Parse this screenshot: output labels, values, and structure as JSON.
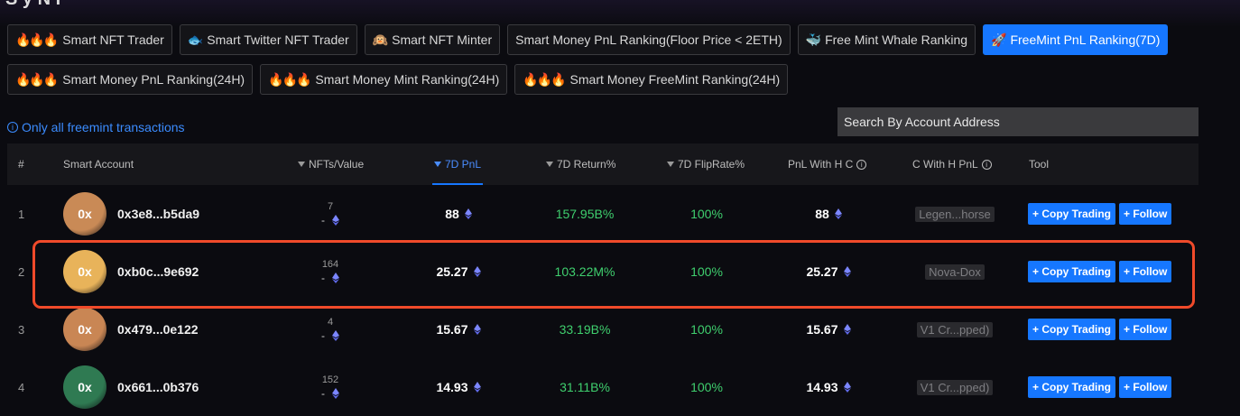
{
  "page": {
    "info_text": "Only all freemint transactions",
    "search_placeholder": "Search By Account Address",
    "top_fragment": "S        y N F"
  },
  "tabs_row1": [
    {
      "icon": "🔥🔥🔥",
      "label": "Smart NFT Trader",
      "active": false
    },
    {
      "icon": "🐟",
      "label": "Smart Twitter NFT Trader",
      "active": false
    },
    {
      "icon": "🙉",
      "label": "Smart NFT Minter",
      "active": false
    },
    {
      "icon": "",
      "label": "Smart Money PnL Ranking(Floor Price < 2ETH)",
      "active": false
    },
    {
      "icon": "🐳",
      "label": "Free Mint Whale Ranking",
      "active": false
    },
    {
      "icon": "🚀",
      "label": "FreeMint PnL Ranking(7D)",
      "active": true
    }
  ],
  "tabs_row2": [
    {
      "icon": "🔥🔥🔥",
      "label": "Smart Money PnL Ranking(24H)",
      "active": false
    },
    {
      "icon": "🔥🔥🔥",
      "label": "Smart Money Mint Ranking(24H)",
      "active": false
    },
    {
      "icon": "🔥🔥🔥",
      "label": "Smart Money FreeMint Ranking(24H)",
      "active": false
    }
  ],
  "table": {
    "headers": {
      "rank": "#",
      "account": "Smart Account",
      "nfts": "NFTs/Value",
      "pnl": "7D PnL",
      "ret": "7D Return%",
      "flip": "7D FlipRate%",
      "pnlh": "PnL With H C",
      "cwh": "C With H PnL",
      "tool": "Tool"
    },
    "sorted_column": "7D PnL",
    "rows": [
      {
        "rank": "1",
        "avatar": "0x",
        "avatar_color": "#c98a56",
        "address": "0x3e8...b5da9",
        "nft_count": "7",
        "nft_value": "-",
        "pnl": "88",
        "ret": "157.95B%",
        "flip": "100%",
        "pnlh": "88",
        "tag": "Legen...horse"
      },
      {
        "rank": "2",
        "avatar": "0x",
        "avatar_color": "#e8b35a",
        "address": "0xb0c...9e692",
        "nft_count": "164",
        "nft_value": "-",
        "pnl": "25.27",
        "ret": "103.22M%",
        "flip": "100%",
        "pnlh": "25.27",
        "tag": "Nova-Dox"
      },
      {
        "rank": "3",
        "avatar": "0x",
        "avatar_color": "#c98654",
        "address": "0x479...0e122",
        "nft_count": "4",
        "nft_value": "-",
        "pnl": "15.67",
        "ret": "33.19B%",
        "flip": "100%",
        "pnlh": "15.67",
        "tag": "V1 Cr...pped)"
      },
      {
        "rank": "4",
        "avatar": "0x",
        "avatar_color": "#2f7a52",
        "address": "0x661...0b376",
        "nft_count": "152",
        "nft_value": "-",
        "pnl": "14.93",
        "ret": "31.11B%",
        "flip": "100%",
        "pnlh": "14.93",
        "tag": "V1 Cr...pped)"
      }
    ],
    "copy_label": "+ Copy Trading",
    "follow_label": "+ Follow"
  },
  "colors": {
    "accent": "#1677ff",
    "positive": "#3fcf6e",
    "highlight_border": "#f04a2a"
  }
}
